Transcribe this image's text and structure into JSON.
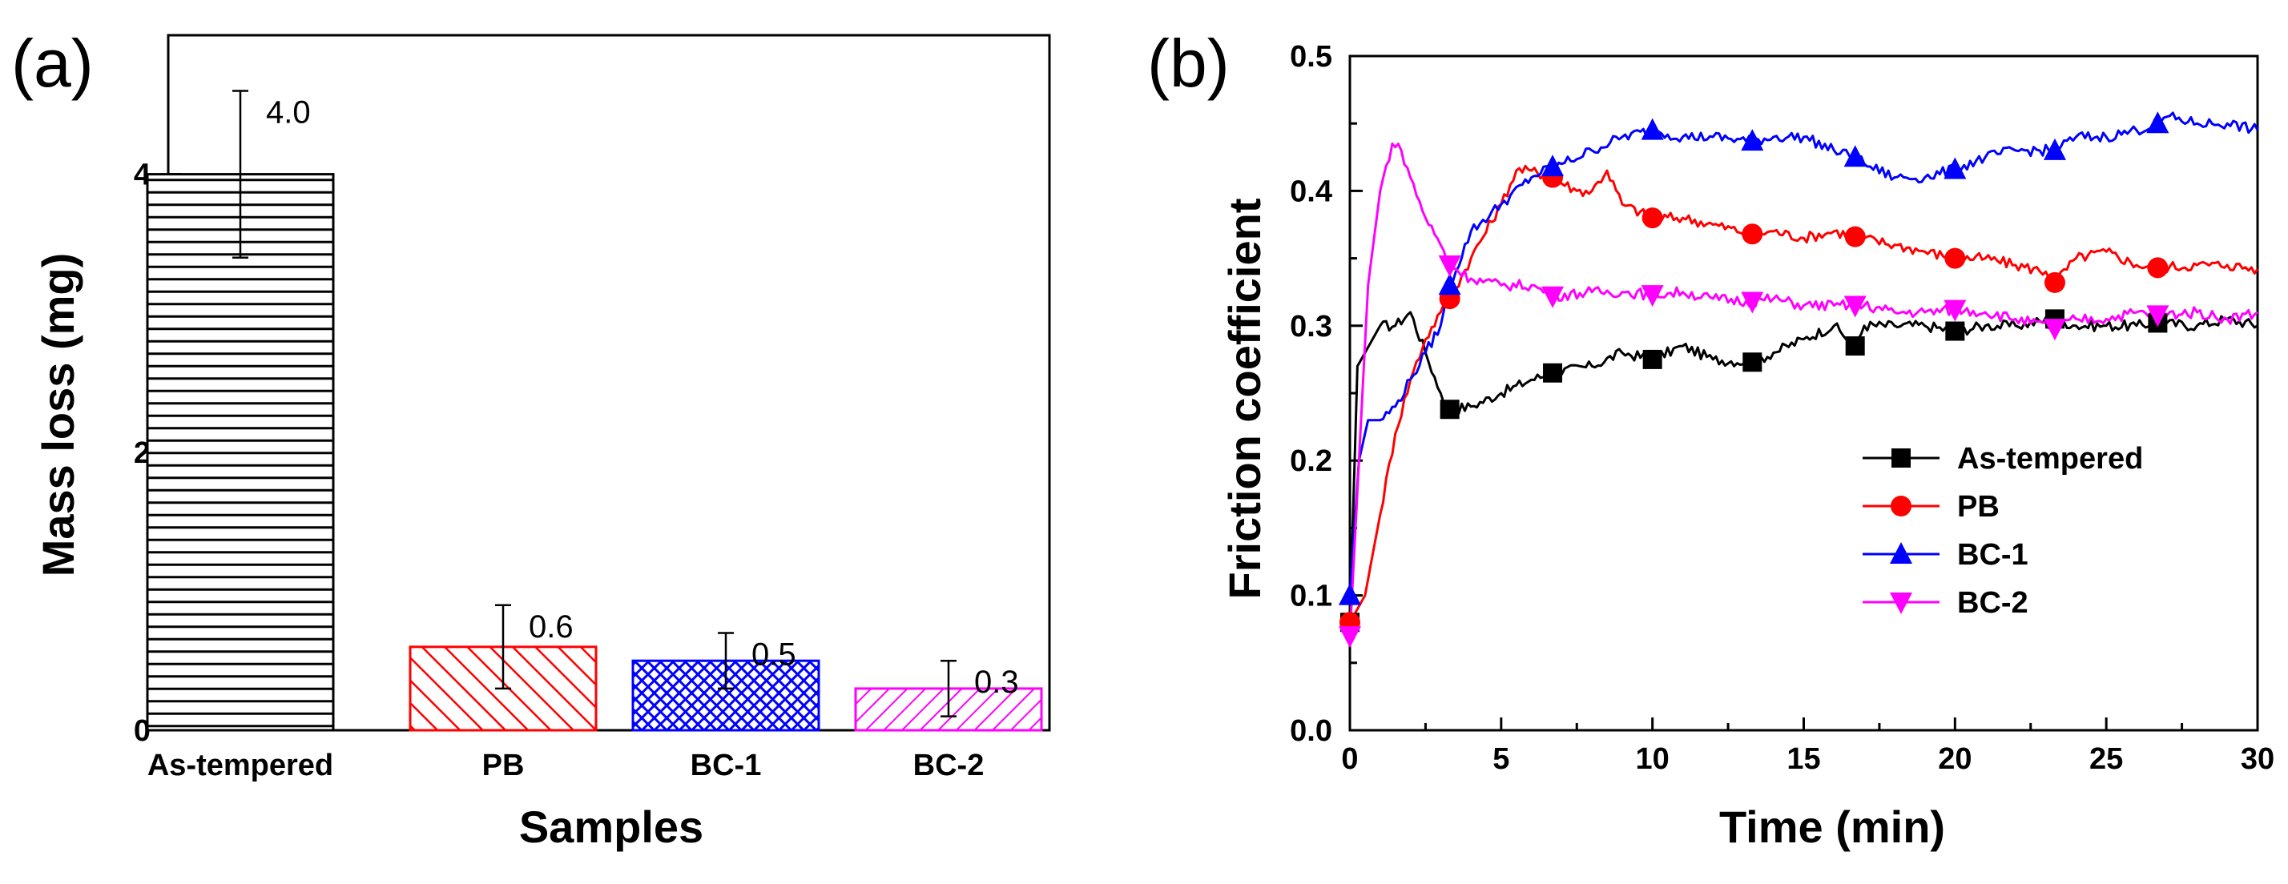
{
  "chart_data": [
    {
      "panel": "(a)",
      "type": "bar",
      "categories": [
        "As-tempered",
        "PB",
        "BC-1",
        "BC-2"
      ],
      "values": [
        4.0,
        0.6,
        0.5,
        0.3
      ],
      "value_labels": [
        "4.0",
        "0.6",
        "0.5",
        "0.3"
      ],
      "errors": [
        0.6,
        0.3,
        0.2,
        0.2
      ],
      "colors": [
        "#000000",
        "#ff0000",
        "#0000ff",
        "#ff00ff"
      ],
      "patterns": [
        "horizontal-lines",
        "diagonal-lines",
        "crosshatch",
        "diagonal-lines"
      ],
      "xlabel": "Samples",
      "ylabel": "Mass loss (mg)",
      "ylim": [
        0,
        5
      ],
      "yticks": [
        0,
        2,
        4
      ],
      "yticks_minor": [
        1,
        3
      ],
      "grid": false
    },
    {
      "panel": "(b)",
      "type": "line",
      "xlabel": "Time (min)",
      "ylabel": "Friction coefficient",
      "xlim": [
        0,
        30
      ],
      "ylim": [
        0,
        0.5
      ],
      "xticks": [
        "0",
        "5",
        "10",
        "15",
        "20",
        "25",
        "30"
      ],
      "yticks": [
        "0.0",
        "0.1",
        "0.2",
        "0.3",
        "0.4",
        "0.5"
      ],
      "legend_position": "bottom-right",
      "grid": false,
      "series": [
        {
          "name": "As-tempered",
          "color": "#000000",
          "marker": "square",
          "x": [
            0,
            0.25,
            0.5,
            0.75,
            1,
            1.5,
            2,
            2.5,
            3,
            3.3,
            4,
            5,
            6,
            6.7,
            8,
            9,
            10,
            11,
            12,
            13.3,
            14,
            15,
            16,
            16.7,
            17,
            18,
            19,
            20,
            21,
            22,
            23.3,
            24,
            25,
            26,
            26.7,
            28,
            29,
            30
          ],
          "y": [
            0.08,
            0.27,
            0.28,
            0.29,
            0.3,
            0.3,
            0.31,
            0.28,
            0.25,
            0.238,
            0.24,
            0.25,
            0.26,
            0.265,
            0.27,
            0.28,
            0.275,
            0.285,
            0.275,
            0.273,
            0.28,
            0.29,
            0.3,
            0.285,
            0.3,
            0.3,
            0.3,
            0.296,
            0.3,
            0.3,
            0.305,
            0.3,
            0.3,
            0.3,
            0.302,
            0.3,
            0.305,
            0.3
          ],
          "marker_x": [
            0,
            3.3,
            6.7,
            10,
            13.3,
            16.7,
            20,
            23.3,
            26.7
          ],
          "marker_y": [
            0.08,
            0.238,
            0.265,
            0.275,
            0.273,
            0.285,
            0.296,
            0.305,
            0.302
          ]
        },
        {
          "name": "PB",
          "color": "#ff0000",
          "marker": "circle",
          "x": [
            0,
            0.5,
            1,
            1.5,
            2,
            2.5,
            3,
            3.3,
            4,
            5,
            5.5,
            6,
            6.7,
            7.5,
            8,
            8.5,
            9,
            10,
            11,
            12,
            13.3,
            14,
            15,
            16,
            16.7,
            18,
            19,
            20,
            21,
            22,
            23,
            23.3,
            24,
            25,
            26,
            26.7,
            28,
            29,
            30
          ],
          "y": [
            0.08,
            0.1,
            0.16,
            0.22,
            0.26,
            0.29,
            0.31,
            0.32,
            0.35,
            0.39,
            0.415,
            0.415,
            0.41,
            0.4,
            0.4,
            0.415,
            0.39,
            0.38,
            0.38,
            0.375,
            0.368,
            0.37,
            0.365,
            0.37,
            0.366,
            0.36,
            0.355,
            0.35,
            0.35,
            0.345,
            0.34,
            0.332,
            0.35,
            0.355,
            0.345,
            0.343,
            0.345,
            0.345,
            0.342
          ],
          "marker_x": [
            0,
            3.3,
            6.7,
            10,
            13.3,
            16.7,
            20,
            23.3,
            26.7
          ],
          "marker_y": [
            0.08,
            0.32,
            0.41,
            0.38,
            0.368,
            0.366,
            0.35,
            0.332,
            0.343
          ]
        },
        {
          "name": "BC-1",
          "color": "#0000ff",
          "marker": "triangle-up",
          "x": [
            0,
            0.3,
            0.6,
            1,
            1.5,
            2,
            2.5,
            3,
            3.3,
            4,
            5,
            6,
            6.7,
            7,
            8,
            9,
            10,
            11,
            12,
            13.3,
            14,
            15,
            16,
            16.7,
            17,
            18,
            19,
            20,
            21,
            22,
            23.3,
            24,
            25,
            26,
            26.7,
            27,
            28,
            29,
            30
          ],
          "y": [
            0.1,
            0.2,
            0.23,
            0.23,
            0.24,
            0.26,
            0.28,
            0.3,
            0.33,
            0.37,
            0.39,
            0.41,
            0.418,
            0.42,
            0.43,
            0.44,
            0.445,
            0.44,
            0.44,
            0.437,
            0.44,
            0.44,
            0.43,
            0.425,
            0.42,
            0.41,
            0.41,
            0.416,
            0.425,
            0.43,
            0.43,
            0.44,
            0.44,
            0.445,
            0.45,
            0.455,
            0.45,
            0.45,
            0.445
          ],
          "marker_x": [
            0,
            3.3,
            6.7,
            10,
            13.3,
            16.7,
            20,
            23.3,
            26.7
          ],
          "marker_y": [
            0.1,
            0.33,
            0.418,
            0.445,
            0.437,
            0.425,
            0.416,
            0.43,
            0.45
          ]
        },
        {
          "name": "BC-2",
          "color": "#ff00ff",
          "marker": "triangle-down",
          "x": [
            0,
            0.3,
            0.6,
            1,
            1.4,
            1.7,
            2,
            2.5,
            3,
            3.3,
            4,
            5,
            6,
            6.7,
            8,
            9,
            10,
            11,
            12,
            13.3,
            14,
            15,
            16,
            16.7,
            17,
            18,
            19,
            20,
            21,
            22,
            23.3,
            24,
            25,
            26,
            26.7,
            28,
            29,
            30
          ],
          "y": [
            0.07,
            0.2,
            0.33,
            0.4,
            0.435,
            0.43,
            0.41,
            0.38,
            0.36,
            0.345,
            0.335,
            0.33,
            0.33,
            0.322,
            0.325,
            0.325,
            0.323,
            0.325,
            0.32,
            0.318,
            0.32,
            0.315,
            0.315,
            0.315,
            0.315,
            0.31,
            0.31,
            0.312,
            0.31,
            0.305,
            0.298,
            0.305,
            0.305,
            0.31,
            0.308,
            0.31,
            0.305,
            0.31
          ],
          "marker_x": [
            0,
            3.3,
            6.7,
            10,
            13.3,
            16.7,
            20,
            23.3,
            26.7
          ],
          "marker_y": [
            0.07,
            0.345,
            0.322,
            0.323,
            0.318,
            0.315,
            0.312,
            0.298,
            0.308
          ]
        }
      ]
    }
  ]
}
